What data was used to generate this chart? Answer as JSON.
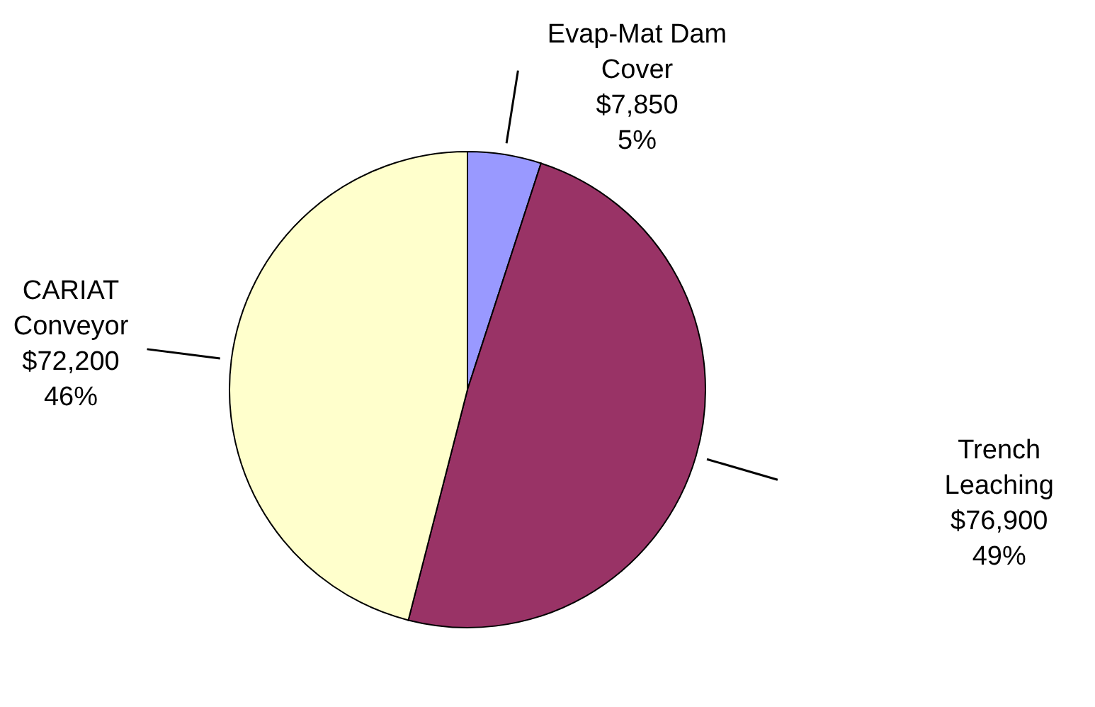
{
  "chart_data": {
    "type": "pie",
    "categories": [
      "Evap-Mat Dam Cover",
      "Trench Leaching",
      "CARIAT Conveyor"
    ],
    "values": [
      7850,
      76900,
      72200
    ],
    "colors": [
      "#9999ff",
      "#993366",
      "#ffffcc"
    ],
    "value_labels": [
      "$7,850\n5%",
      "$76,900\n49%",
      "$72,200\n46%"
    ]
  }
}
